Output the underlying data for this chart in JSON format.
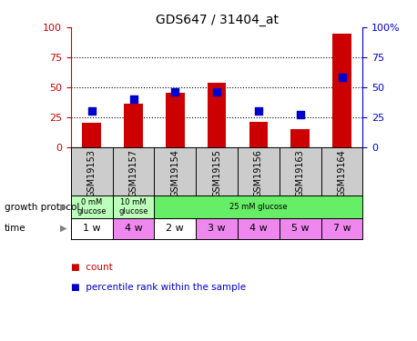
{
  "title": "GDS647 / 31404_at",
  "samples": [
    "GSM19153",
    "GSM19157",
    "GSM19154",
    "GSM19155",
    "GSM19156",
    "GSM19163",
    "GSM19164"
  ],
  "counts": [
    20,
    36,
    45,
    54,
    21,
    15,
    95
  ],
  "percentiles": [
    30,
    40,
    46,
    46,
    30,
    27,
    58
  ],
  "ylim": [
    0,
    100
  ],
  "bar_color": "#cc0000",
  "dot_color": "#0000cc",
  "protocol_info": [
    {
      "start": 0,
      "end": 1,
      "label": "0 mM\nglucose",
      "color": "#bbffbb"
    },
    {
      "start": 1,
      "end": 2,
      "label": "10 mM\nglucose",
      "color": "#bbffbb"
    },
    {
      "start": 2,
      "end": 7,
      "label": "25 mM glucose",
      "color": "#66ee66"
    }
  ],
  "time_labels": [
    "1 w",
    "4 w",
    "2 w",
    "3 w",
    "4 w",
    "5 w",
    "7 w"
  ],
  "time_colors": [
    "#ffffff",
    "#ee88ee",
    "#ffffff",
    "#ee88ee",
    "#ee88ee",
    "#ee88ee",
    "#ee88ee"
  ],
  "bg_color": "#ffffff",
  "sample_row_color": "#cccccc",
  "legend_count_color": "#cc0000",
  "legend_pct_color": "#0000cc",
  "left_label_gp": "growth protocol",
  "left_label_time": "time",
  "legend_count": "count",
  "legend_pct": "percentile rank within the sample"
}
